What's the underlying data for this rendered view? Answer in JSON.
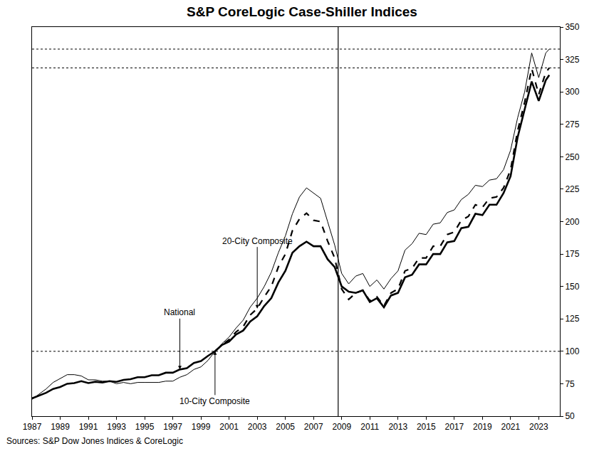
{
  "chart_data": {
    "type": "line",
    "title": "S&P CoreLogic Case-Shiller Indices",
    "source": "Sources: S&P Dow Jones Indices & CoreLogic",
    "x": [
      1987,
      1987.5,
      1988,
      1988.5,
      1989,
      1989.5,
      1990,
      1990.5,
      1991,
      1991.5,
      1992,
      1992.5,
      1993,
      1993.5,
      1994,
      1994.5,
      1995,
      1995.5,
      1996,
      1996.5,
      1997,
      1997.5,
      1998,
      1998.5,
      1999,
      1999.5,
      2000,
      2000.5,
      2001,
      2001.5,
      2002,
      2002.5,
      2003,
      2003.5,
      2004,
      2004.5,
      2005,
      2005.5,
      2006,
      2006.5,
      2007,
      2007.5,
      2008,
      2008.5,
      2009,
      2009.5,
      2010,
      2010.5,
      2011,
      2011.5,
      2012,
      2012.5,
      2013,
      2013.5,
      2014,
      2014.5,
      2015,
      2015.5,
      2016,
      2016.5,
      2017,
      2017.5,
      2018,
      2018.5,
      2019,
      2019.5,
      2020,
      2020.5,
      2021,
      2021.5,
      2022,
      2022.5,
      2023,
      2023.5,
      2023.75
    ],
    "series": [
      {
        "name": "National",
        "color": "#000000",
        "line_style": "solid",
        "values": [
          63.7,
          66,
          68,
          71,
          72.5,
          75,
          75.5,
          77,
          75.5,
          76.5,
          76,
          77,
          76.5,
          78,
          78.5,
          80,
          80,
          81.5,
          81.5,
          83.5,
          83.5,
          86,
          87,
          91,
          92.5,
          96.5,
          100,
          105,
          107.5,
          113,
          116,
          123,
          127,
          135,
          141,
          153,
          162,
          176,
          181,
          184.5,
          181,
          181,
          171,
          165,
          150,
          146,
          145,
          147,
          138,
          141,
          134,
          143,
          145,
          157,
          159,
          167,
          167,
          175,
          175,
          184,
          185,
          195,
          196,
          206,
          205,
          213,
          213,
          222,
          235,
          265,
          286,
          308,
          293,
          309,
          313
        ]
      },
      {
        "name": "20-City Composite",
        "color": "#000000",
        "line_style": "dash",
        "values": [
          null,
          null,
          null,
          null,
          null,
          null,
          null,
          null,
          null,
          null,
          null,
          null,
          null,
          null,
          null,
          null,
          null,
          null,
          null,
          null,
          null,
          null,
          null,
          null,
          null,
          null,
          100,
          105,
          109,
          115,
          119,
          128,
          133,
          142,
          150,
          165,
          175,
          193,
          202,
          206.5,
          201,
          200,
          185,
          172,
          148,
          140,
          145,
          147,
          139,
          142,
          135,
          145,
          148,
          162,
          164,
          172,
          172,
          181,
          181,
          190,
          192,
          201,
          204,
          213,
          211,
          218,
          219,
          226,
          240,
          270,
          292,
          318,
          298,
          315,
          318.5
        ]
      },
      {
        "name": "10-City Composite",
        "color": "#000000",
        "line_style": "solid",
        "values": [
          63,
          67,
          71,
          76,
          79,
          82,
          82,
          81,
          78,
          78,
          77,
          77,
          75,
          76,
          75,
          76,
          76,
          76,
          76,
          77,
          77,
          80,
          82,
          86,
          88,
          93,
          100,
          106,
          111,
          118,
          124,
          134,
          141,
          150,
          161,
          176,
          189,
          206,
          219,
          226,
          222,
          218,
          200,
          182,
          160,
          152,
          158,
          160,
          150,
          155,
          148,
          156,
          162,
          178,
          183,
          191,
          190,
          198,
          199,
          207,
          209,
          217,
          221,
          228,
          227,
          232,
          233,
          240,
          255,
          280,
          300,
          330,
          311,
          330,
          333
        ]
      }
    ],
    "xlim": [
      1987,
      2024.5
    ],
    "xticks": [
      1987,
      1989,
      1991,
      1993,
      1995,
      1997,
      1999,
      2001,
      2003,
      2005,
      2007,
      2009,
      2011,
      2013,
      2015,
      2017,
      2019,
      2021,
      2023
    ],
    "ylim": [
      50,
      350
    ],
    "yticks": [
      50,
      75,
      100,
      125,
      150,
      175,
      200,
      225,
      250,
      275,
      300,
      325,
      350
    ],
    "grid": false,
    "reference_lines": {
      "x": [
        2008.75
      ],
      "y": [
        100,
        318.5,
        333
      ]
    },
    "annotations": [
      {
        "text": "20-City Composite",
        "x": 2003,
        "y": 133
      },
      {
        "text": "National",
        "x": 1997.5,
        "y": 86
      },
      {
        "text": "10-City Composite",
        "x": 2000,
        "y": 100
      }
    ]
  }
}
